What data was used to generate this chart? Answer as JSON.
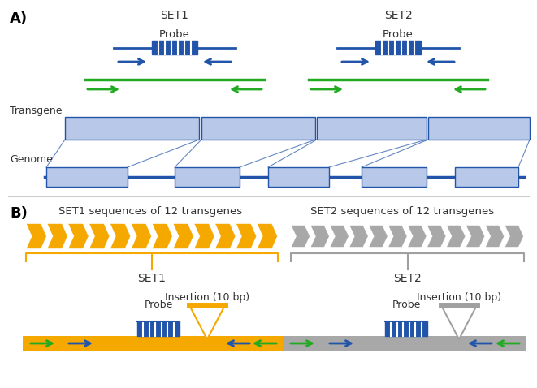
{
  "fig_width": 6.61,
  "fig_height": 4.78,
  "bg_color": "#ffffff",
  "blue_light": "#b8c8e8",
  "blue_dark": "#2255aa",
  "green_color": "#22aa22",
  "orange_color": "#f5a800",
  "gray_chevron": "#a8a8a8",
  "gray_tri": "#a0a0a0",
  "text_color": "#333333",
  "label_A": "A)",
  "label_B": "B)",
  "set1_label": "SET1",
  "set2_label": "SET2",
  "probe_label": "Probe",
  "transgene_label": "Transgene",
  "genome_label": "Genome",
  "set1_seq_label": "SET1 sequences of 12 transgenes",
  "set2_seq_label": "SET2 sequences of 12 transgenes",
  "set1_brace_label": "SET1",
  "set2_brace_label": "SET2",
  "insertion_label": "Insertion (10 bp)",
  "probe_label2": "Probe"
}
